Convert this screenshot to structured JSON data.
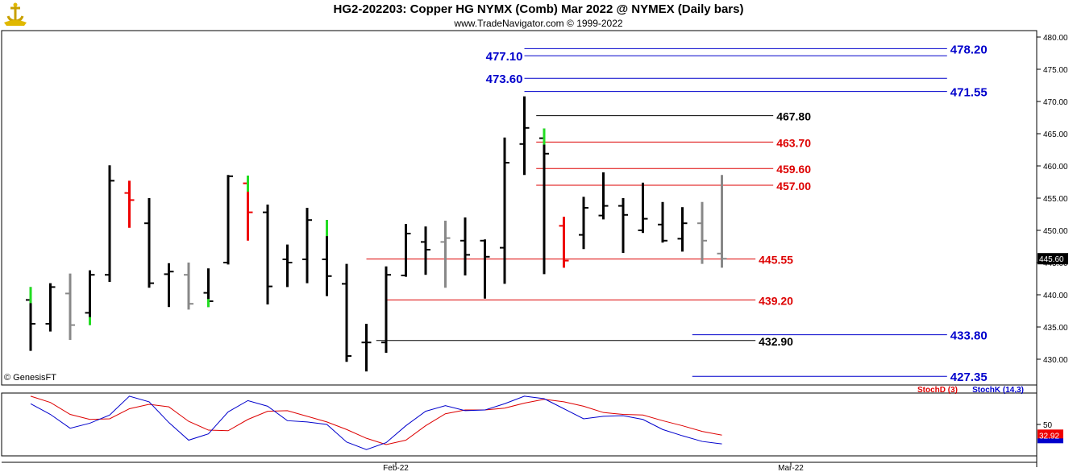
{
  "header": {
    "title": "HG2-202203:  Copper HG NYMX (Comb) Mar 2022 @ NYMEX  (Daily bars)",
    "subtitle": "www.TradeNavigator.com © 1999-2022",
    "logo_icon": "genesis-logo-icon"
  },
  "chart_data": [
    {
      "type": "ohlc",
      "ylim": [
        426,
        481
      ],
      "y_ticks": [
        "480.00",
        "475.00",
        "470.00",
        "465.00",
        "460.00",
        "455.00",
        "450.00",
        "445.00",
        "440.00",
        "435.00",
        "430.00"
      ],
      "y_tick_values": [
        480,
        475,
        470,
        465,
        460,
        455,
        450,
        445,
        440,
        435,
        430
      ],
      "last_price_label": "445.60",
      "last_price": 445.6,
      "watermark": "© GenesisFT",
      "colors": {
        "up": "#000000",
        "down": "#000000",
        "neutral": "#888888",
        "gap_up": "#22dd22",
        "gap_down": "#ee0000",
        "blue_line": "#0000cc",
        "red_line": "#dd0000",
        "black_line": "#000000"
      },
      "bars": [
        {
          "o": 439.2,
          "h": 441.2,
          "l": 431.3,
          "c": 435.5,
          "color": "black",
          "mark_hi": "green"
        },
        {
          "o": 435.5,
          "h": 441.8,
          "l": 434.3,
          "c": 441.2,
          "color": "black"
        },
        {
          "o": 440.2,
          "h": 443.3,
          "l": 433.0,
          "c": 435.3,
          "color": "gray"
        },
        {
          "o": 437.2,
          "h": 443.8,
          "l": 435.3,
          "c": 443.1,
          "color": "black",
          "mark_lo": "green"
        },
        {
          "o": 443.1,
          "h": 460.1,
          "l": 442.0,
          "c": 457.7,
          "color": "black"
        },
        {
          "o": 455.8,
          "h": 457.7,
          "l": 450.4,
          "c": 454.7,
          "color": "red"
        },
        {
          "o": 451.1,
          "h": 455.0,
          "l": 441.1,
          "c": 441.8,
          "color": "black"
        },
        {
          "o": 443.2,
          "h": 444.9,
          "l": 438.1,
          "c": 443.6,
          "color": "black"
        },
        {
          "o": 443.1,
          "h": 445.0,
          "l": 437.7,
          "c": 438.6,
          "color": "gray"
        },
        {
          "o": 440.3,
          "h": 444.1,
          "l": 438.1,
          "c": 439.0,
          "color": "black",
          "mark_lo": "green"
        },
        {
          "o": 445.0,
          "h": 458.6,
          "l": 444.7,
          "c": 458.4,
          "color": "black"
        },
        {
          "o": 457.3,
          "h": 458.5,
          "l": 448.4,
          "c": 452.8,
          "color": "red",
          "mark_hi": "green"
        },
        {
          "o": 452.8,
          "h": 454.0,
          "l": 438.5,
          "c": 441.3,
          "color": "black"
        },
        {
          "o": 445.5,
          "h": 447.8,
          "l": 441.2,
          "c": 445.0,
          "color": "black"
        },
        {
          "o": 445.5,
          "h": 453.5,
          "l": 441.8,
          "c": 451.6,
          "color": "black"
        },
        {
          "o": 445.5,
          "h": 451.6,
          "l": 439.8,
          "c": 442.9,
          "color": "black",
          "mark_hi": "green"
        },
        {
          "o": 441.7,
          "h": 444.8,
          "l": 429.6,
          "c": 430.5,
          "color": "black"
        },
        {
          "o": 432.6,
          "h": 435.5,
          "l": 428.1,
          "c": 432.6,
          "color": "black"
        },
        {
          "o": 432.6,
          "h": 444.4,
          "l": 431.0,
          "c": 443.1,
          "color": "black"
        },
        {
          "o": 443.0,
          "h": 451.0,
          "l": 442.8,
          "c": 449.5,
          "color": "black"
        },
        {
          "o": 448.2,
          "h": 450.6,
          "l": 443.1,
          "c": 447.0,
          "color": "black"
        },
        {
          "o": 448.2,
          "h": 451.5,
          "l": 441.1,
          "c": 448.8,
          "color": "gray"
        },
        {
          "o": 448.4,
          "h": 452.0,
          "l": 443.0,
          "c": 446.2,
          "color": "black"
        },
        {
          "o": 448.4,
          "h": 448.6,
          "l": 439.4,
          "c": 445.9,
          "color": "black"
        },
        {
          "o": 447.3,
          "h": 464.4,
          "l": 441.7,
          "c": 460.5,
          "color": "black"
        },
        {
          "o": 463.4,
          "h": 470.8,
          "l": 458.6,
          "c": 465.9,
          "color": "black"
        },
        {
          "o": 464.3,
          "h": 465.8,
          "l": 443.2,
          "c": 461.9,
          "color": "black",
          "mark_hi": "green"
        },
        {
          "o": 450.7,
          "h": 452.1,
          "l": 444.2,
          "c": 445.3,
          "color": "red"
        },
        {
          "o": 449.3,
          "h": 455.2,
          "l": 447.1,
          "c": 453.5,
          "color": "black"
        },
        {
          "o": 452.3,
          "h": 459.0,
          "l": 451.7,
          "c": 453.8,
          "color": "black"
        },
        {
          "o": 453.8,
          "h": 455.0,
          "l": 446.5,
          "c": 452.4,
          "color": "black"
        },
        {
          "o": 450.0,
          "h": 457.4,
          "l": 449.6,
          "c": 451.8,
          "color": "black"
        },
        {
          "o": 450.9,
          "h": 454.4,
          "l": 448.1,
          "c": 448.4,
          "color": "black"
        },
        {
          "o": 448.7,
          "h": 453.6,
          "l": 446.7,
          "c": 451.1,
          "color": "black"
        },
        {
          "o": 451.1,
          "h": 454.4,
          "l": 444.8,
          "c": 448.4,
          "color": "gray"
        },
        {
          "o": 446.4,
          "h": 458.6,
          "l": 444.2,
          "c": 445.6,
          "color": "gray"
        }
      ],
      "levels": [
        {
          "value": 478.2,
          "label": "478.20",
          "color": "blue",
          "x1": 25,
          "x2": 46.4,
          "label_side": "right"
        },
        {
          "value": 477.1,
          "label": "477.10",
          "color": "blue",
          "x1": 25,
          "x2": 46.4,
          "label_side": "left"
        },
        {
          "value": 473.6,
          "label": "473.60",
          "color": "blue",
          "x1": 25,
          "x2": 46.4,
          "label_side": "left"
        },
        {
          "value": 471.55,
          "label": "471.55",
          "color": "blue",
          "x1": 25,
          "x2": 46.4,
          "label_side": "right"
        },
        {
          "value": 467.8,
          "label": "467.80",
          "color": "black",
          "x1": 25.6,
          "x2": 37.6,
          "label_side": "right"
        },
        {
          "value": 463.7,
          "label": "463.70",
          "color": "red",
          "x1": 25.6,
          "x2": 37.6,
          "label_side": "right"
        },
        {
          "value": 459.6,
          "label": "459.60",
          "color": "red",
          "x1": 25.6,
          "x2": 37.6,
          "label_side": "right"
        },
        {
          "value": 457.0,
          "label": "457.00",
          "color": "red",
          "x1": 25.6,
          "x2": 37.6,
          "label_side": "right"
        },
        {
          "value": 445.55,
          "label": "445.55",
          "color": "red",
          "x1": 17,
          "x2": 36.7,
          "label_side": "right"
        },
        {
          "value": 439.2,
          "label": "439.20",
          "color": "red",
          "x1": 18,
          "x2": 36.7,
          "label_side": "right"
        },
        {
          "value": 432.9,
          "label": "432.90",
          "color": "black",
          "x1": 17.5,
          "x2": 36.7,
          "label_side": "right"
        },
        {
          "value": 433.8,
          "label": "433.80",
          "color": "blue",
          "x1": 33.5,
          "x2": 46.4,
          "label_side": "right"
        },
        {
          "value": 427.35,
          "label": "427.35",
          "color": "blue",
          "x1": 33.5,
          "x2": 46.4,
          "label_side": "right"
        }
      ],
      "x_tick_labels": [
        {
          "label": "Feb-22",
          "index": 18
        },
        {
          "label": "Mar-22",
          "index": 38
        }
      ]
    },
    {
      "type": "line",
      "ylim": [
        0,
        100
      ],
      "y_ticks": [
        "50"
      ],
      "y_tick_values": [
        50
      ],
      "last_value_label": "32.92",
      "last_value": 32.92,
      "series": [
        {
          "name": "StochD (3)",
          "color": "#dd0000",
          "values": [
            95,
            85,
            66,
            58,
            59,
            75,
            82,
            78,
            55,
            41,
            40,
            58,
            71,
            72,
            63,
            54,
            42,
            28,
            18,
            25,
            48,
            67,
            73,
            73,
            76,
            84,
            90,
            86,
            79,
            69,
            66,
            65,
            56,
            48,
            39,
            33
          ]
        },
        {
          "name": "StochK (14,3)",
          "color": "#0000cc",
          "values": [
            83,
            66,
            44,
            52,
            65,
            95,
            86,
            53,
            25,
            35,
            70,
            88,
            79,
            56,
            54,
            50,
            22,
            10,
            21,
            48,
            71,
            80,
            72,
            73,
            83,
            95,
            91,
            75,
            59,
            63,
            64,
            58,
            42,
            32,
            23,
            19
          ]
        }
      ]
    }
  ]
}
